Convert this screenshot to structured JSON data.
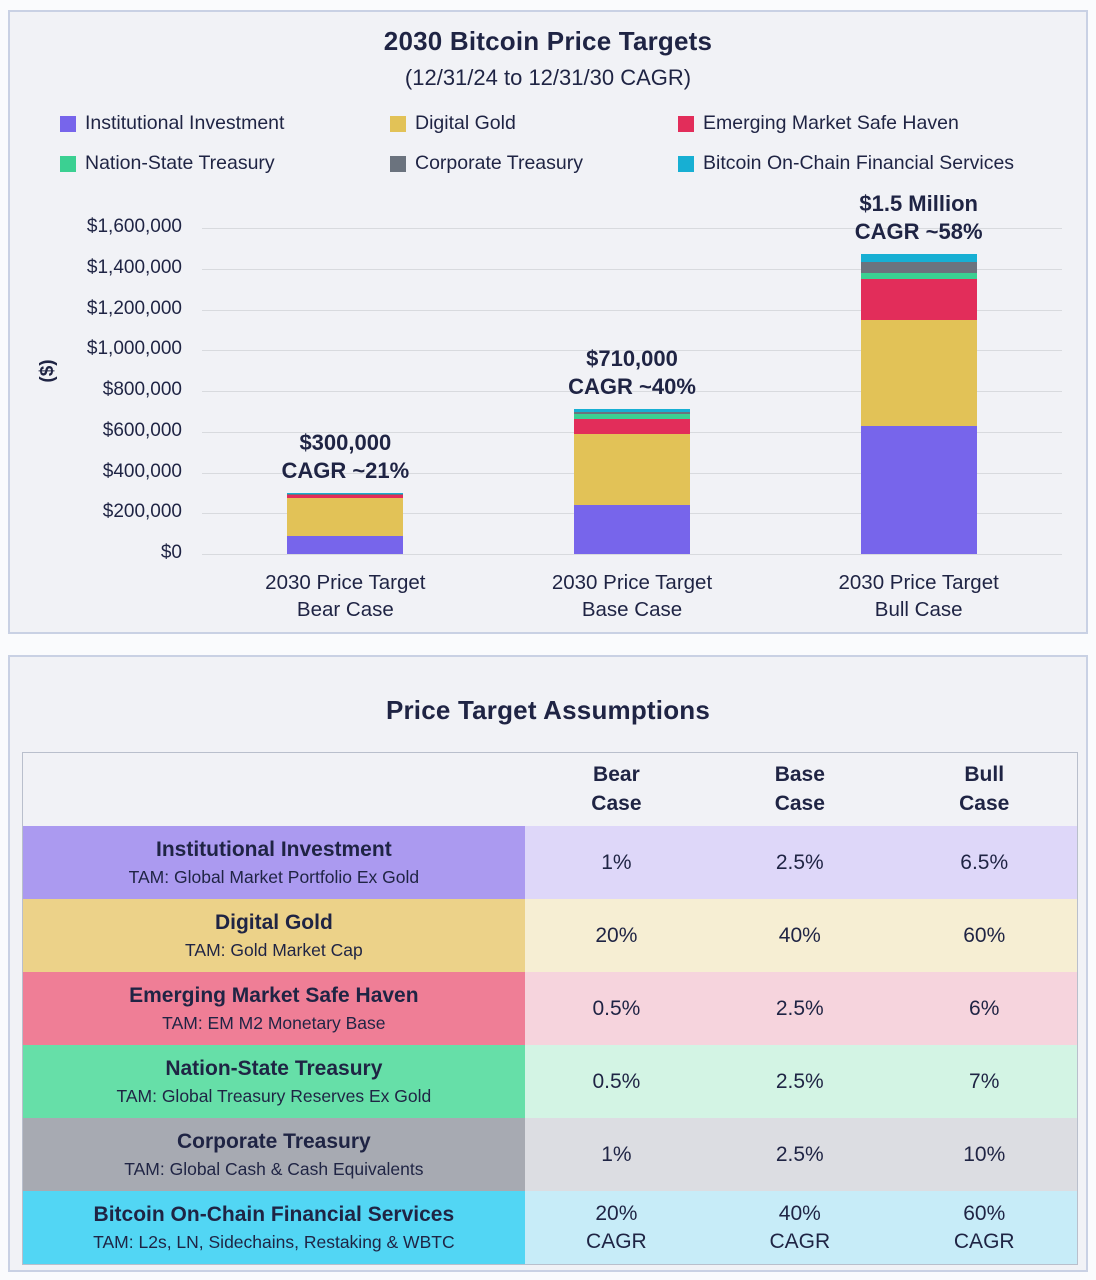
{
  "colors": {
    "text": "#1f2444",
    "page_bg": "#fafbfd",
    "panel_bg": "#f1f2f6",
    "panel_border": "#c9d1e4",
    "gridline": "#d8dade"
  },
  "chart_data": {
    "type": "bar",
    "stacked": true,
    "title": "2030 Bitcoin Price Targets",
    "subtitle": "(12/31/24 to 12/31/30 CAGR)",
    "ylabel": "($)",
    "ylim": [
      0,
      1600000
    ],
    "ytick_step": 200000,
    "ytick_labels": [
      "$0",
      "$200,000",
      "$400,000",
      "$600,000",
      "$800,000",
      "$1,000,000",
      "$1,200,000",
      "$1,400,000",
      "$1,600,000"
    ],
    "grid": true,
    "legend_position": "top",
    "categories": [
      "2030 Price Target\nBear Case",
      "2030 Price Target\nBase Case",
      "2030 Price Target\nBull Case"
    ],
    "annotations": [
      "$300,000\nCAGR ~21%",
      "$710,000\nCAGR ~40%",
      "$1.5 Million\nCAGR ~58%"
    ],
    "bar_totals_approx": [
      300000,
      710000,
      1500000
    ],
    "series": [
      {
        "name": "Institutional Investment",
        "color": "#7765eb",
        "values": [
          90000,
          240000,
          630000
        ]
      },
      {
        "name": "Digital Gold",
        "color": "#e2c257",
        "values": [
          185000,
          350000,
          520000
        ]
      },
      {
        "name": "Emerging Market Safe Haven",
        "color": "#e22d5a",
        "values": [
          15000,
          75000,
          200000
        ]
      },
      {
        "name": "Nation-State Treasury",
        "color": "#3bd092",
        "values": [
          2000,
          20000,
          30000
        ]
      },
      {
        "name": "Corporate Treasury",
        "color": "#6b737e",
        "values": [
          3000,
          10000,
          55000
        ]
      },
      {
        "name": "Bitcoin On-Chain Financial Services",
        "color": "#17afd3",
        "values": [
          5000,
          15000,
          40000
        ]
      }
    ]
  },
  "table": {
    "title": "Price Target Assumptions",
    "column_headers": [
      "Bear\nCase",
      "Base\nCase",
      "Bull\nCase"
    ],
    "rows": [
      {
        "name": "Institutional Investment",
        "tam": "TAM: Global Market Portfolio Ex Gold",
        "values": [
          "1%",
          "2.5%",
          "6.5%"
        ],
        "label_bg": "#ab9af0",
        "value_bg": "#ded7f9"
      },
      {
        "name": "Digital Gold",
        "tam": "TAM: Gold Market Cap",
        "values": [
          "20%",
          "40%",
          "60%"
        ],
        "label_bg": "#ecd289",
        "value_bg": "#f6eed3"
      },
      {
        "name": "Emerging Market Safe Haven",
        "tam": "TAM: EM M2 Monetary Base",
        "values": [
          "0.5%",
          "2.5%",
          "6%"
        ],
        "label_bg": "#ef7e96",
        "value_bg": "#f6d4dd"
      },
      {
        "name": "Nation-State Treasury",
        "tam": "TAM: Global Treasury Reserves Ex Gold",
        "values": [
          "0.5%",
          "2.5%",
          "7%"
        ],
        "label_bg": "#66dfa8",
        "value_bg": "#d3f4e4"
      },
      {
        "name": "Corporate Treasury",
        "tam": "TAM: Global Cash & Cash Equivalents",
        "values": [
          "1%",
          "2.5%",
          "10%"
        ],
        "label_bg": "#a7aab2",
        "value_bg": "#dcdde2"
      },
      {
        "name": "Bitcoin On-Chain Financial Services",
        "tam": "TAM: L2s, LN, Sidechains, Restaking & WBTC",
        "values": [
          "20%\nCAGR",
          "40%\nCAGR",
          "60%\nCAGR"
        ],
        "label_bg": "#52d6f4",
        "value_bg": "#c7ecf8"
      }
    ]
  }
}
